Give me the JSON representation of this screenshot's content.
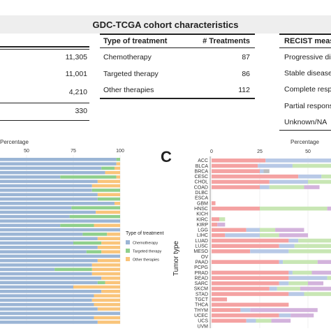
{
  "title": "GDC-TCGA cohort characteristics",
  "left_table": {
    "values": [
      "11,305",
      "11,001",
      "4,210",
      "330"
    ]
  },
  "treatment_table": {
    "header_type": "Type of treatment",
    "header_count": "# Treatments",
    "rows": [
      {
        "type": "Chemotherapy",
        "count": "87"
      },
      {
        "type": "Targeted therapy",
        "count": "86"
      },
      {
        "type": "Other therapies",
        "count": "112"
      }
    ]
  },
  "recist_table": {
    "header": "RECIST measu",
    "rows": [
      "Progressive disa",
      "Stable disease",
      "Complete respo",
      "Partial response",
      "Unknown/NA"
    ]
  },
  "panel_c_letter": "C",
  "colors": {
    "chemotherapy": "#9bb5d5",
    "targeted": "#8fcf8c",
    "other": "#f9c47a",
    "progressive": "#f4a2a2",
    "stable": "#b8c9e6",
    "complete": "#c8e6b4",
    "partial": "#d3b3dc",
    "unknown": "#bdbdbd"
  },
  "chart_data": [
    {
      "type": "bar",
      "orientation": "horizontal",
      "stacked": true,
      "xlabel": "Percentage",
      "xticks": [
        50,
        75,
        100
      ],
      "xlim": [
        0,
        100
      ],
      "legend": {
        "title": "Type of treatment",
        "entries": [
          "Chemotherapy",
          "Targeted therapy",
          "Other therapies"
        ],
        "placement": "right"
      },
      "series": [
        {
          "name": "Chemotherapy",
          "values": [
            98,
            98,
            90,
            92,
            68,
            88,
            85,
            85,
            88,
            88,
            97,
            74,
            87,
            73,
            100,
            68,
            100,
            80,
            88,
            75,
            88,
            82,
            100,
            88,
            85,
            65,
            85,
            90,
            88,
            75,
            90,
            86,
            85,
            86,
            88,
            100,
            86,
            88
          ]
        },
        {
          "name": "Targeted therapy",
          "values": [
            2,
            0,
            7,
            0,
            30,
            0,
            0,
            15,
            0,
            12,
            0,
            26,
            0,
            27,
            0,
            18,
            0,
            13,
            0,
            15,
            0,
            8,
            0,
            0,
            0,
            20,
            0,
            0,
            4,
            0,
            0,
            0,
            0,
            0,
            0,
            0,
            0,
            0
          ]
        },
        {
          "name": "Other therapies",
          "values": [
            0,
            2,
            3,
            8,
            2,
            12,
            15,
            0,
            12,
            0,
            3,
            0,
            13,
            0,
            0,
            14,
            0,
            7,
            12,
            10,
            12,
            10,
            0,
            12,
            15,
            15,
            15,
            10,
            8,
            25,
            10,
            14,
            15,
            14,
            12,
            0,
            14,
            12
          ]
        }
      ]
    },
    {
      "type": "bar",
      "orientation": "horizontal",
      "stacked": true,
      "xlabel": "Percentage",
      "ylabel": "Tumor type",
      "xticks": [
        0,
        25,
        50
      ],
      "xlim": [
        0,
        100
      ],
      "categories": [
        "ACC",
        "BLCA",
        "BRCA",
        "CESC",
        "CHOL",
        "COAD",
        "DLBC",
        "ESCA",
        "GBM",
        "HNSC",
        "KICH",
        "KIRC",
        "KIRP",
        "LGG",
        "LIHC",
        "LUAD",
        "LUSC",
        "MESO",
        "OV",
        "PAAD",
        "PCPG",
        "PRAD",
        "READ",
        "SARC",
        "SKCM",
        "STAD",
        "TGCT",
        "THCA",
        "THYM",
        "UCEC",
        "UCS",
        "UVM"
      ],
      "series": [
        {
          "name": "Progressive",
          "values": [
            28,
            24,
            25,
            45,
            30,
            25,
            0,
            0,
            2,
            25,
            0,
            4,
            3,
            18,
            7,
            40,
            35,
            20,
            0,
            35,
            0,
            40,
            40,
            35,
            30,
            40,
            8,
            40,
            15,
            35,
            18,
            0
          ]
        },
        {
          "name": "Stable",
          "values": [
            47,
            18,
            2,
            12,
            20,
            5,
            0,
            0,
            0,
            0,
            0,
            0,
            0,
            7,
            18,
            5,
            8,
            20,
            0,
            2,
            0,
            2,
            20,
            5,
            4,
            8,
            0,
            0,
            5,
            6,
            5,
            0
          ]
        },
        {
          "name": "Complete",
          "values": [
            20,
            30,
            0,
            8,
            40,
            18,
            0,
            0,
            0,
            35,
            0,
            3,
            0,
            8,
            10,
            20,
            35,
            35,
            0,
            18,
            0,
            10,
            20,
            10,
            12,
            15,
            0,
            0,
            0,
            0,
            8,
            0
          ]
        },
        {
          "name": "Partial",
          "values": [
            5,
            28,
            0,
            5,
            10,
            8,
            0,
            0,
            0,
            20,
            0,
            0,
            4,
            15,
            15,
            10,
            10,
            15,
            0,
            20,
            0,
            20,
            12,
            8,
            25,
            15,
            0,
            0,
            35,
            12,
            10,
            0
          ]
        },
        {
          "name": "Unknown/NA",
          "values": [
            0,
            0,
            3,
            0,
            0,
            0,
            0,
            0,
            0,
            0,
            0,
            0,
            0,
            0,
            0,
            0,
            0,
            0,
            0,
            0,
            0,
            0,
            0,
            0,
            0,
            0,
            0,
            0,
            0,
            0,
            0,
            0
          ]
        }
      ]
    }
  ]
}
